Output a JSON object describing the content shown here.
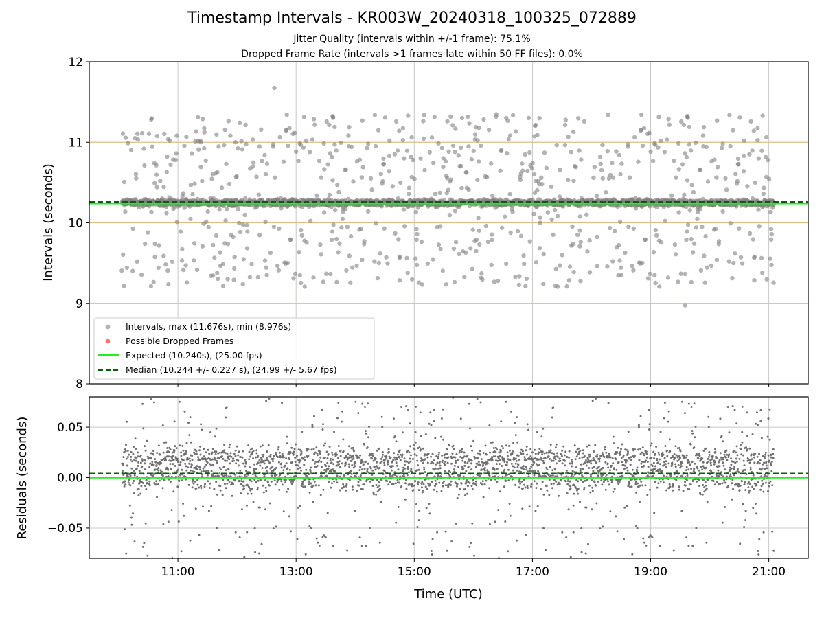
{
  "chart_data": [
    {
      "type": "scatter",
      "title": "Timestamp Intervals - KR003W_20240318_100325_072889",
      "subtitle_1": "Jitter Quality (intervals within +/-1 frame): 75.1%",
      "subtitle_2": "Dropped Frame Rate (intervals >1 frames late within 50 FF files): 0.0%",
      "xlabel": "",
      "ylabel": "Intervals (seconds)",
      "ylim": [
        8,
        12
      ],
      "yticks": [
        "8",
        "9",
        "10",
        "11",
        "12"
      ],
      "x_range_utc": [
        "09:30",
        "21:40"
      ],
      "data_time_range_utc": [
        "10:03",
        "21:05"
      ],
      "xtick_labels": [
        "11:00",
        "13:00",
        "15:00",
        "17:00",
        "19:00",
        "21:00"
      ],
      "xtick_hours": [
        11,
        13,
        15,
        17,
        19,
        21
      ],
      "grid": "vertical at x ticks",
      "hlines": [
        9,
        10,
        11
      ],
      "hline_color": "#dbbf85",
      "legend_position": "lower-left",
      "series": [
        {
          "name": "Intervals, max (11.676s), min (8.976s)",
          "kind": "scatter",
          "color": "#808080",
          "cluster_value": 10.25,
          "cluster_spread": 0.02,
          "max": 11.676,
          "min": 8.976,
          "outlier_range": [
            9.2,
            11.35
          ]
        },
        {
          "name": "Possible Dropped Frames",
          "kind": "scatter",
          "color": "#ff5050",
          "values": []
        },
        {
          "name": "Expected (10.240s), (25.00 fps)",
          "kind": "hline",
          "value": 10.24,
          "color": "#22ee22"
        },
        {
          "name": "Median (10.244 +/- 0.227 s), (24.99 +/- 5.67 fps)",
          "kind": "hline-dashed",
          "value": 10.244,
          "color": "#006400"
        }
      ]
    },
    {
      "type": "scatter",
      "xlabel": "Time (UTC)",
      "ylabel": "Residuals (seconds)",
      "ylim": [
        -0.08,
        0.08
      ],
      "yticks": [
        "−0.05",
        "0.00",
        "0.05"
      ],
      "ytick_values": [
        -0.05,
        0.0,
        0.05
      ],
      "grid": "both",
      "series": [
        {
          "name": "Residuals",
          "kind": "scatter",
          "color": "#707070",
          "bands": [
            0.0,
            0.02
          ],
          "spread": 0.012,
          "outlier_range": [
            -0.08,
            0.08
          ]
        },
        {
          "name": "Expected",
          "kind": "hline",
          "value": 0.0,
          "color": "#22ee22"
        },
        {
          "name": "Median",
          "kind": "hline-dashed",
          "value": 0.004,
          "color": "#006400"
        }
      ]
    }
  ]
}
